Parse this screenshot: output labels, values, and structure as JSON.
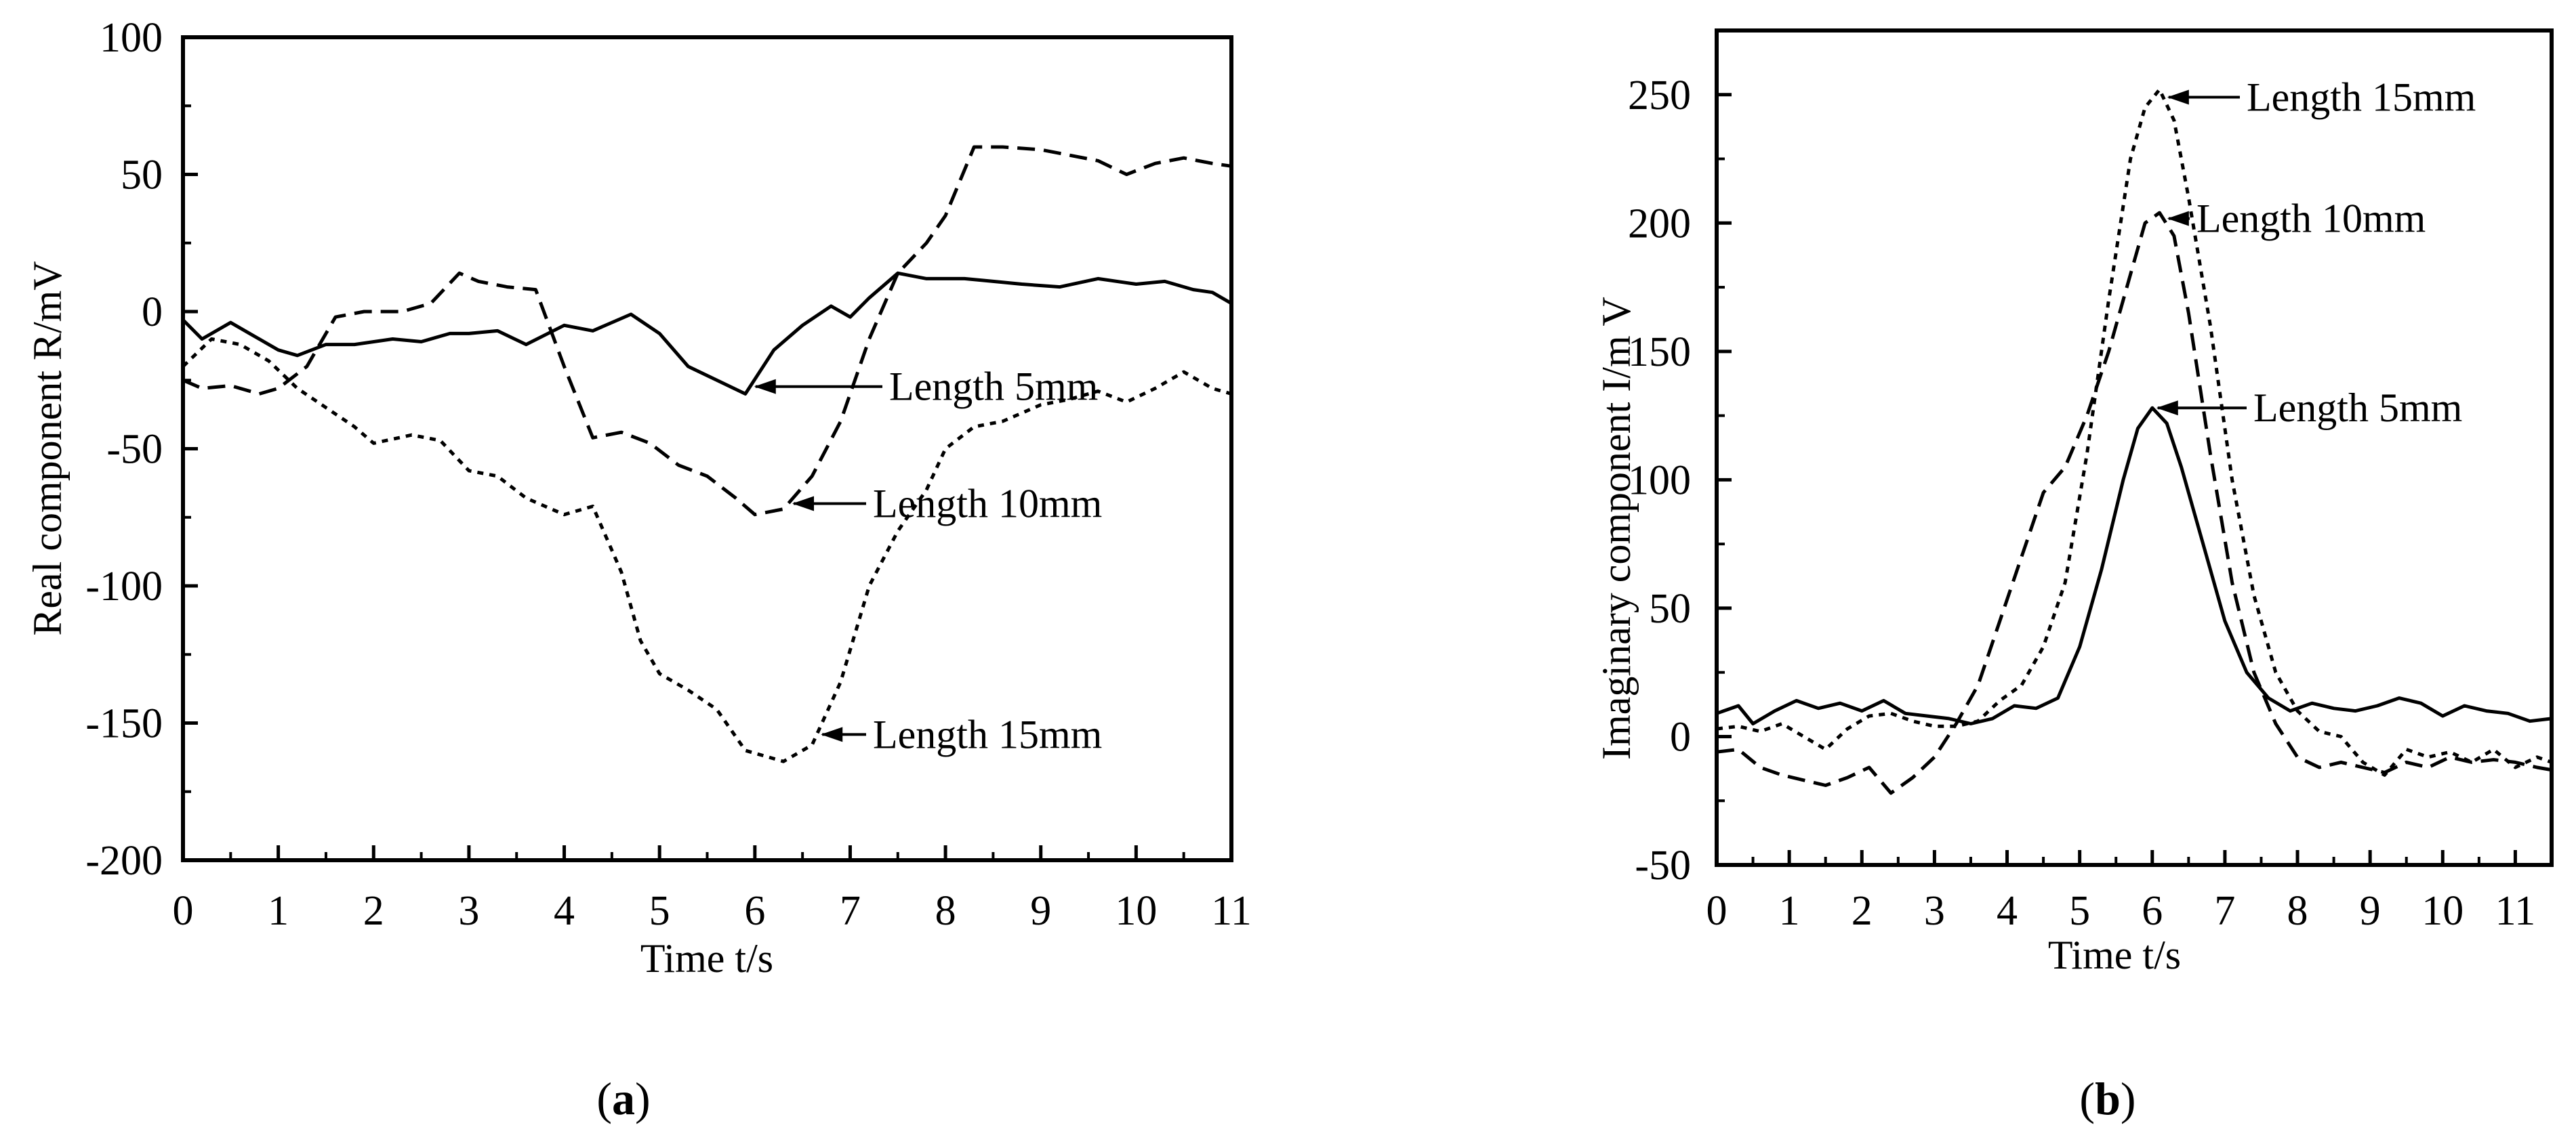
{
  "chart_data": [
    {
      "panel_label": "(a)",
      "type": "line",
      "xlabel": "Time t/s",
      "ylabel": "Real component R/mV",
      "xlim": [
        0,
        11
      ],
      "ylim": [
        -200,
        100
      ],
      "xticks": [
        0,
        1,
        2,
        3,
        4,
        5,
        6,
        7,
        8,
        9,
        10,
        11
      ],
      "yticks": [
        -200,
        -150,
        -100,
        -50,
        0,
        50,
        100
      ],
      "grid": false,
      "series": [
        {
          "name": "Length 5mm",
          "line_style": "solid",
          "x": [
            0,
            0.2,
            0.5,
            0.7,
            1.0,
            1.2,
            1.5,
            1.8,
            2.2,
            2.5,
            2.8,
            3.0,
            3.3,
            3.6,
            4.0,
            4.3,
            4.7,
            5.0,
            5.3,
            5.6,
            5.9,
            6.2,
            6.5,
            6.8,
            7.0,
            7.2,
            7.5,
            7.8,
            8.2,
            8.5,
            8.8,
            9.2,
            9.6,
            10.0,
            10.3,
            10.6,
            10.8,
            11.0
          ],
          "y": [
            -3,
            -10,
            -4,
            -8,
            -14,
            -16,
            -12,
            -12,
            -10,
            -11,
            -8,
            -8,
            -7,
            -12,
            -5,
            -7,
            -1,
            -8,
            -20,
            -25,
            -30,
            -14,
            -5,
            2,
            -2,
            5,
            14,
            12,
            12,
            11,
            10,
            9,
            12,
            10,
            11,
            8,
            7,
            3
          ]
        },
        {
          "name": "Length 10mm",
          "line_style": "dashed",
          "x": [
            0,
            0.2,
            0.5,
            0.8,
            1.0,
            1.3,
            1.6,
            1.9,
            2.3,
            2.6,
            2.9,
            3.1,
            3.4,
            3.7,
            4.0,
            4.3,
            4.6,
            4.9,
            5.2,
            5.5,
            5.8,
            6.0,
            6.3,
            6.6,
            6.9,
            7.2,
            7.5,
            7.8,
            8.0,
            8.3,
            8.6,
            9.0,
            9.3,
            9.6,
            9.9,
            10.2,
            10.5,
            10.8,
            11.0
          ],
          "y": [
            -25,
            -28,
            -27,
            -30,
            -28,
            -20,
            -2,
            0,
            0,
            3,
            14,
            11,
            9,
            8,
            -20,
            -46,
            -44,
            -48,
            -56,
            -60,
            -68,
            -74,
            -72,
            -60,
            -40,
            -10,
            14,
            25,
            35,
            60,
            60,
            59,
            57,
            55,
            50,
            54,
            56,
            54,
            53
          ]
        },
        {
          "name": "Length 15mm",
          "line_style": "dotted",
          "x": [
            0,
            0.3,
            0.6,
            0.9,
            1.2,
            1.5,
            1.8,
            2.0,
            2.4,
            2.7,
            3.0,
            3.3,
            3.6,
            4.0,
            4.3,
            4.6,
            4.8,
            5.0,
            5.3,
            5.6,
            5.9,
            6.1,
            6.3,
            6.6,
            6.9,
            7.2,
            7.5,
            7.8,
            8.0,
            8.3,
            8.6,
            9.0,
            9.3,
            9.6,
            9.9,
            10.2,
            10.5,
            10.8,
            11.0
          ],
          "y": [
            -20,
            -10,
            -12,
            -18,
            -28,
            -35,
            -42,
            -48,
            -45,
            -47,
            -58,
            -60,
            -68,
            -74,
            -71,
            -95,
            -120,
            -132,
            -138,
            -145,
            -160,
            -162,
            -164,
            -158,
            -135,
            -100,
            -80,
            -65,
            -50,
            -42,
            -40,
            -34,
            -32,
            -29,
            -33,
            -28,
            -22,
            -28,
            -30
          ]
        }
      ],
      "annotations": [
        "Length 5mm",
        "Length 10mm",
        "Length 15mm"
      ]
    },
    {
      "panel_label": "(b)",
      "type": "line",
      "xlabel": "Time t/s",
      "ylabel": "Imaginary component I/m V",
      "xlim": [
        0,
        11.5
      ],
      "ylim": [
        -50,
        275
      ],
      "xticks": [
        0,
        1,
        2,
        3,
        4,
        5,
        6,
        7,
        8,
        9,
        10,
        11
      ],
      "yticks": [
        -50,
        0,
        50,
        100,
        150,
        200,
        250
      ],
      "grid": false,
      "series": [
        {
          "name": "Length 5mm",
          "line_style": "solid",
          "x": [
            0,
            0.3,
            0.5,
            0.8,
            1.1,
            1.4,
            1.7,
            2.0,
            2.3,
            2.6,
            2.9,
            3.2,
            3.5,
            3.8,
            4.1,
            4.4,
            4.7,
            5.0,
            5.3,
            5.6,
            5.8,
            6.0,
            6.2,
            6.4,
            6.7,
            7.0,
            7.3,
            7.6,
            7.9,
            8.2,
            8.5,
            8.8,
            9.1,
            9.4,
            9.7,
            10.0,
            10.3,
            10.6,
            10.9,
            11.2,
            11.5
          ],
          "y": [
            9,
            12,
            5,
            10,
            14,
            11,
            13,
            10,
            14,
            9,
            8,
            7,
            5,
            7,
            12,
            11,
            15,
            35,
            65,
            100,
            120,
            128,
            122,
            105,
            75,
            45,
            25,
            15,
            10,
            13,
            11,
            10,
            12,
            15,
            13,
            8,
            12,
            10,
            9,
            6,
            7
          ]
        },
        {
          "name": "Length 10mm",
          "line_style": "dashed",
          "x": [
            0,
            0.3,
            0.6,
            0.9,
            1.2,
            1.5,
            1.8,
            2.1,
            2.4,
            2.7,
            3.0,
            3.3,
            3.6,
            3.9,
            4.2,
            4.5,
            4.8,
            5.1,
            5.4,
            5.7,
            5.9,
            6.1,
            6.3,
            6.5,
            6.8,
            7.1,
            7.4,
            7.7,
            8.0,
            8.3,
            8.6,
            8.9,
            9.2,
            9.5,
            9.8,
            10.1,
            10.4,
            10.7,
            11.0,
            11.3,
            11.5
          ],
          "y": [
            -6,
            -5,
            -12,
            -15,
            -17,
            -19,
            -16,
            -12,
            -22,
            -16,
            -8,
            5,
            20,
            45,
            70,
            95,
            105,
            125,
            150,
            180,
            200,
            204,
            195,
            165,
            110,
            60,
            25,
            5,
            -8,
            -12,
            -10,
            -12,
            -14,
            -10,
            -12,
            -8,
            -10,
            -9,
            -10,
            -12,
            -13
          ]
        },
        {
          "name": "Length 15mm",
          "line_style": "dotted",
          "x": [
            0,
            0.3,
            0.6,
            0.9,
            1.2,
            1.5,
            1.8,
            2.1,
            2.4,
            2.7,
            3.0,
            3.3,
            3.6,
            3.9,
            4.2,
            4.5,
            4.8,
            5.1,
            5.4,
            5.7,
            5.9,
            6.1,
            6.3,
            6.5,
            6.8,
            7.1,
            7.4,
            7.7,
            8.0,
            8.3,
            8.6,
            8.9,
            9.2,
            9.5,
            9.8,
            10.1,
            10.4,
            10.7,
            11.0,
            11.3,
            11.5
          ],
          "y": [
            3,
            4,
            2,
            5,
            0,
            -5,
            3,
            8,
            9,
            6,
            4,
            4,
            6,
            14,
            20,
            35,
            60,
            110,
            170,
            225,
            245,
            252,
            240,
            210,
            160,
            100,
            55,
            25,
            10,
            2,
            0,
            -10,
            -15,
            -5,
            -8,
            -6,
            -10,
            -5,
            -12,
            -8,
            -10
          ]
        }
      ],
      "annotations": [
        "Length 15mm",
        "Length 10mm",
        "Length 5mm"
      ]
    }
  ]
}
